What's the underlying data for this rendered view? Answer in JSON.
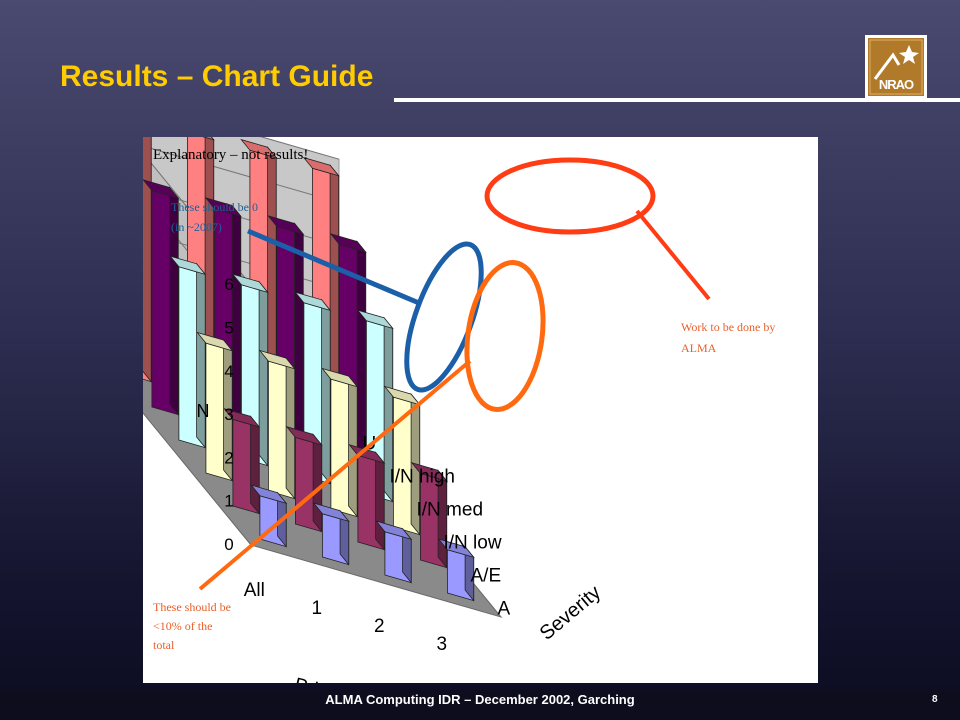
{
  "slide": {
    "title": "Results – Chart Guide",
    "footer": "ALMA Computing IDR – December 2002, Garching",
    "page_number": "8",
    "logo_text": "NRAO"
  },
  "colors": {
    "title": "#ffcc00",
    "annotation_orange": "#e8602a",
    "annotation_blue": "#1f5f9a",
    "circle_red": "#ff3c14",
    "circle_orange": "#ff6a10",
    "circle_blue": "#1a5fa8"
  },
  "chart_data": {
    "type": "bar3d",
    "note": "Explanatory – not results!",
    "zlabel": "N",
    "xlabel": "Priority",
    "ylabel": "Severity",
    "zlim": [
      0,
      6
    ],
    "z_ticks": [
      "0",
      "1",
      "2",
      "3",
      "4",
      "5",
      "6"
    ],
    "priority_categories": [
      "All",
      "1",
      "2",
      "3"
    ],
    "severity_categories": [
      "A",
      "A/E",
      "I/N low",
      "I/N med",
      "I/N high",
      "U"
    ],
    "series": [
      {
        "name": "A",
        "color": "#9999ff",
        "values": [
          1,
          1,
          1,
          1
        ]
      },
      {
        "name": "A/E",
        "color": "#993366",
        "values": [
          2,
          2,
          2,
          2
        ]
      },
      {
        "name": "I/N low",
        "color": "#ffffcc",
        "values": [
          3,
          3,
          3,
          3
        ]
      },
      {
        "name": "I/N med",
        "color": "#ccffff",
        "values": [
          4,
          4,
          4,
          4
        ]
      },
      {
        "name": "I/N high",
        "color": "#660066",
        "values": [
          5,
          5,
          5,
          5
        ]
      },
      {
        "name": "U",
        "color": "#ff8080",
        "values": [
          6,
          6,
          6,
          6
        ]
      }
    ],
    "annotations": {
      "should_be_zero": [
        "These should be 0",
        "(in ~2007)"
      ],
      "work_alma": [
        "Work to be done by",
        "ALMA"
      ],
      "less_than_10": [
        "These should be",
        "<10% of the",
        "total"
      ]
    }
  }
}
